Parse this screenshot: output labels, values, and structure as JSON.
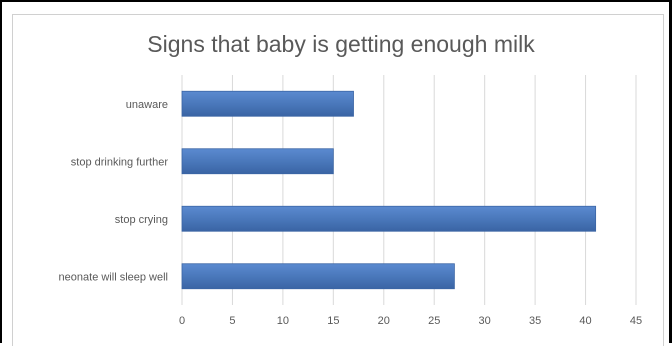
{
  "chart_data": {
    "type": "bar",
    "orientation": "horizontal",
    "title": "Signs that baby is getting enough milk",
    "categories": [
      "unaware",
      "stop drinking further",
      "stop crying",
      "neonate will sleep well"
    ],
    "values": [
      17,
      15,
      41,
      27
    ],
    "xlim": [
      0,
      45
    ],
    "xticks": [
      0,
      5,
      10,
      15,
      20,
      25,
      30,
      35,
      40,
      45
    ],
    "grid": "vertical",
    "legend": "none",
    "bar_color": "#4a78bb"
  }
}
